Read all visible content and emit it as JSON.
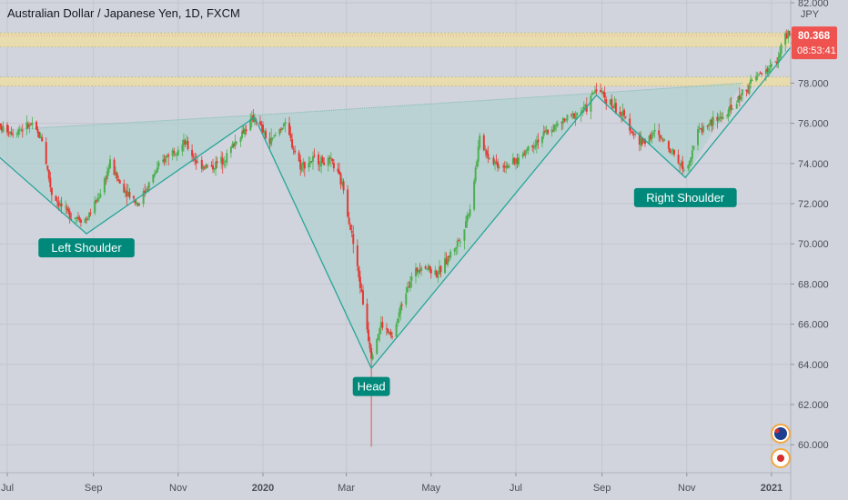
{
  "header": {
    "title": "Australian Dollar / Japanese Yen, 1D, FXCM"
  },
  "price_axis": {
    "currency": "JPY",
    "last_price": "80.368",
    "countdown": "08:53:41"
  },
  "colors": {
    "up": "#26a69a",
    "down": "#ef5350",
    "upCandle": "#4caf50",
    "downCandle": "#e53935",
    "zone_fill": "#f0e0a0",
    "pattern_fill": "#a8cfcc",
    "line": "#26a69a",
    "label_bg": "#00897b"
  },
  "chart_data": {
    "type": "candlestick",
    "title": "Australian Dollar / Japanese Yen, 1D, FXCM",
    "ylim": [
      59,
      82.5
    ],
    "y_ticks": [
      60,
      62,
      64,
      66,
      68,
      70,
      72,
      74,
      76,
      78,
      80,
      82
    ],
    "y_tick_labels": [
      "60.000",
      "62.000",
      "64.000",
      "66.000",
      "68.000",
      "70.000",
      "72.000",
      "74.000",
      "76.000",
      "78.000",
      "80.000",
      "82.000"
    ],
    "x_ticks": [
      {
        "label": "Jul",
        "bold": false
      },
      {
        "label": "Sep",
        "bold": false
      },
      {
        "label": "Nov",
        "bold": false
      },
      {
        "label": "2020",
        "bold": true
      },
      {
        "label": "Mar",
        "bold": false
      },
      {
        "label": "May",
        "bold": false
      },
      {
        "label": "Jul",
        "bold": false
      },
      {
        "label": "Sep",
        "bold": false
      },
      {
        "label": "Nov",
        "bold": false
      },
      {
        "label": "2021",
        "bold": true
      }
    ],
    "x_tick_months": [
      "2019-07-01",
      "2019-09-01",
      "2019-11-01",
      "2020-01-01",
      "2020-03-01",
      "2020-05-01",
      "2020-07-01",
      "2020-09-01",
      "2020-11-01",
      "2021-01-01"
    ],
    "x_range": [
      "2019-06-24",
      "2021-01-19"
    ],
    "support_zones": [
      [
        79.8,
        80.5
      ],
      [
        77.85,
        78.3
      ]
    ],
    "pattern_points": [
      {
        "date": "2019-06-24",
        "price": 74.4
      },
      {
        "date": "2019-08-27",
        "price": 70.5
      },
      {
        "date": "2019-12-26",
        "price": 76.3
      },
      {
        "date": "2020-03-19",
        "price": 63.8
      },
      {
        "date": "2020-08-28",
        "price": 77.4
      },
      {
        "date": "2020-10-31",
        "price": 73.3
      },
      {
        "date": "2021-01-15",
        "price": 79.8
      }
    ],
    "neckline": [
      {
        "date": "2019-07-08",
        "price": 75.7
      },
      {
        "date": "2019-12-26",
        "price": 76.4
      },
      {
        "date": "2020-08-28",
        "price": 77.5
      },
      {
        "date": "2020-12-11",
        "price": 78.0
      }
    ],
    "annotations": [
      {
        "text": "Left Shoulder",
        "date": "2019-08-27",
        "price": 69.8
      },
      {
        "text": "Head",
        "date": "2020-03-19",
        "price": 62.9
      },
      {
        "text": "Right Shoulder",
        "date": "2020-10-31",
        "price": 72.3
      }
    ],
    "price_path": [
      [
        "2019-06-24",
        75.8
      ],
      [
        "2019-07-05",
        75.6
      ],
      [
        "2019-07-18",
        75.9
      ],
      [
        "2019-07-26",
        75.2
      ],
      [
        "2019-08-02",
        72.5
      ],
      [
        "2019-08-13",
        71.5
      ],
      [
        "2019-08-27",
        71.2
      ],
      [
        "2019-09-05",
        72.4
      ],
      [
        "2019-09-13",
        74.0
      ],
      [
        "2019-09-20",
        73.0
      ],
      [
        "2019-10-03",
        72.0
      ],
      [
        "2019-10-15",
        73.5
      ],
      [
        "2019-10-25",
        74.5
      ],
      [
        "2019-11-06",
        75.0
      ],
      [
        "2019-11-15",
        74.0
      ],
      [
        "2019-11-25",
        73.8
      ],
      [
        "2019-12-05",
        74.3
      ],
      [
        "2019-12-13",
        75.2
      ],
      [
        "2019-12-26",
        76.3
      ],
      [
        "2020-01-06",
        75.0
      ],
      [
        "2020-01-16",
        76.0
      ],
      [
        "2020-01-28",
        73.9
      ],
      [
        "2020-02-07",
        74.2
      ],
      [
        "2020-02-20",
        74.0
      ],
      [
        "2020-02-28",
        72.8
      ],
      [
        "2020-03-06",
        70.0
      ],
      [
        "2020-03-12",
        67.5
      ],
      [
        "2020-03-19",
        64.5
      ],
      [
        "2020-03-26",
        66.0
      ],
      [
        "2020-04-03",
        65.3
      ],
      [
        "2020-04-14",
        68.0
      ],
      [
        "2020-04-24",
        69.0
      ],
      [
        "2020-05-06",
        68.5
      ],
      [
        "2020-05-15",
        69.5
      ],
      [
        "2020-05-22",
        70.3
      ],
      [
        "2020-05-29",
        71.8
      ],
      [
        "2020-06-05",
        75.2
      ],
      [
        "2020-06-12",
        74.3
      ],
      [
        "2020-06-19",
        73.9
      ],
      [
        "2020-06-30",
        74.0
      ],
      [
        "2020-07-10",
        74.8
      ],
      [
        "2020-07-24",
        75.6
      ],
      [
        "2020-08-07",
        76.2
      ],
      [
        "2020-08-21",
        76.8
      ],
      [
        "2020-08-28",
        77.8
      ],
      [
        "2020-09-07",
        77.0
      ],
      [
        "2020-09-18",
        76.2
      ],
      [
        "2020-09-28",
        75.0
      ],
      [
        "2020-10-09",
        75.5
      ],
      [
        "2020-10-20",
        74.8
      ],
      [
        "2020-10-31",
        73.6
      ],
      [
        "2020-11-09",
        75.6
      ],
      [
        "2020-11-20",
        76.1
      ],
      [
        "2020-12-01",
        76.5
      ],
      [
        "2020-12-11",
        77.5
      ],
      [
        "2020-12-21",
        78.3
      ],
      [
        "2021-01-04",
        79.0
      ],
      [
        "2021-01-11",
        80.3
      ],
      [
        "2021-01-19",
        80.37
      ]
    ],
    "extreme_wicks": [
      {
        "date": "2020-03-19",
        "low": 59.9,
        "high": 65.0
      }
    ]
  }
}
